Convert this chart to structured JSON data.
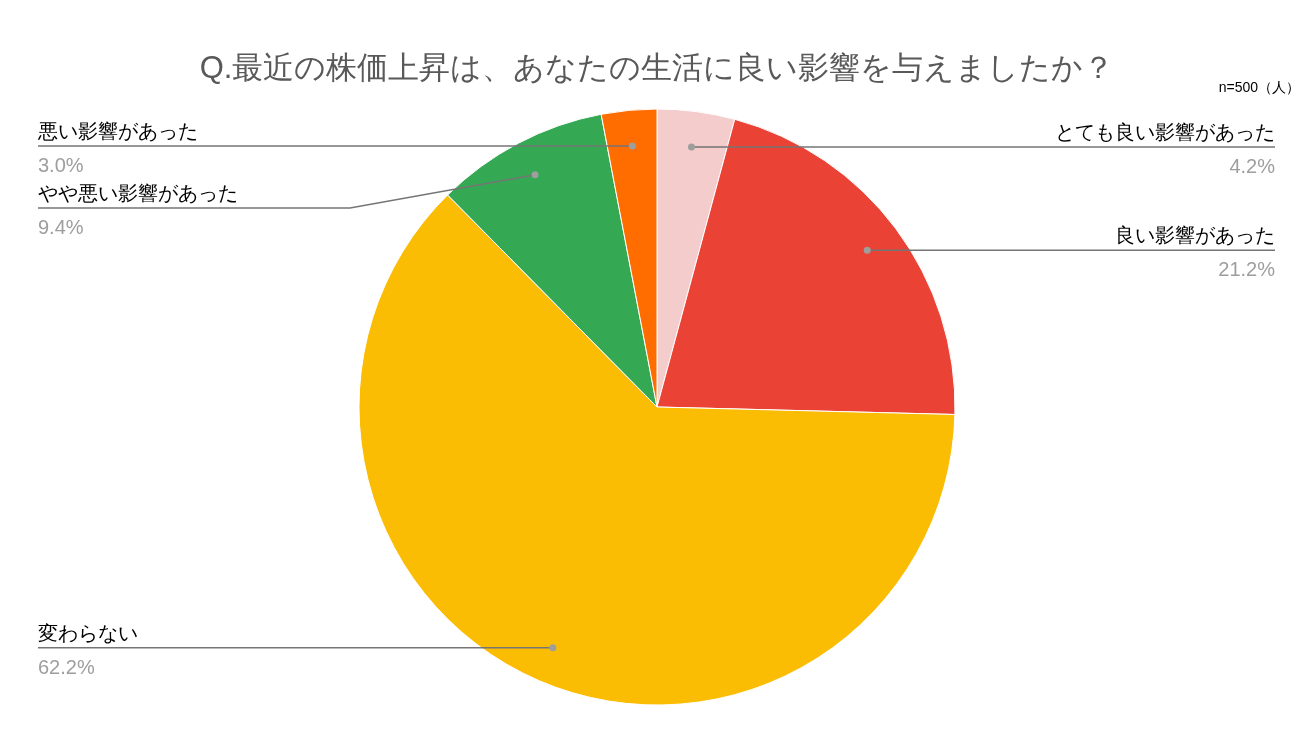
{
  "chart_data": {
    "type": "pie",
    "title": "Q.最近の株価上昇は、あなたの生活に良い影響を与えましたか？",
    "annotations": [
      "n=500（人）"
    ],
    "categories": [
      "とても良い影響があった",
      "良い影響があった",
      "変わらない",
      "やや悪い影響があった",
      "悪い影響があった"
    ],
    "values": [
      4.2,
      21.2,
      62.2,
      9.4,
      3.0
    ],
    "value_labels": [
      "4.2%",
      "21.2%",
      "62.2%",
      "9.4%",
      "3.0%"
    ],
    "colors": [
      "#f4cccc",
      "#ea4335",
      "#fbbc04",
      "#34a853",
      "#ff6d01"
    ]
  }
}
